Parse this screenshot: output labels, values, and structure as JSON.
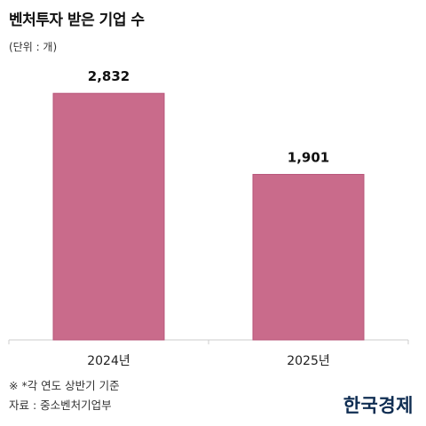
{
  "header": {
    "title": "벤처투자 받은 기업 수",
    "unit": "(단위 : 개)"
  },
  "footer": {
    "note": "※ *각 연도 상반기 기준",
    "source": "자료 : 중소벤처기업부",
    "logo": "한국경제"
  },
  "colors": {
    "bar": "#c96b8b",
    "bar_stroke": "#b8557a",
    "axis": "#cccccc",
    "logo": "#0f2d52"
  },
  "chart_data": {
    "type": "bar",
    "title": "벤처투자 받은 기업 수",
    "unit": "(단위 : 개)",
    "categories": [
      "2024년",
      "2025년"
    ],
    "values": [
      2832,
      1901
    ],
    "value_labels": [
      "2,832",
      "1,901"
    ],
    "ylim": [
      0,
      3150
    ],
    "grid": false,
    "legend": "none"
  }
}
